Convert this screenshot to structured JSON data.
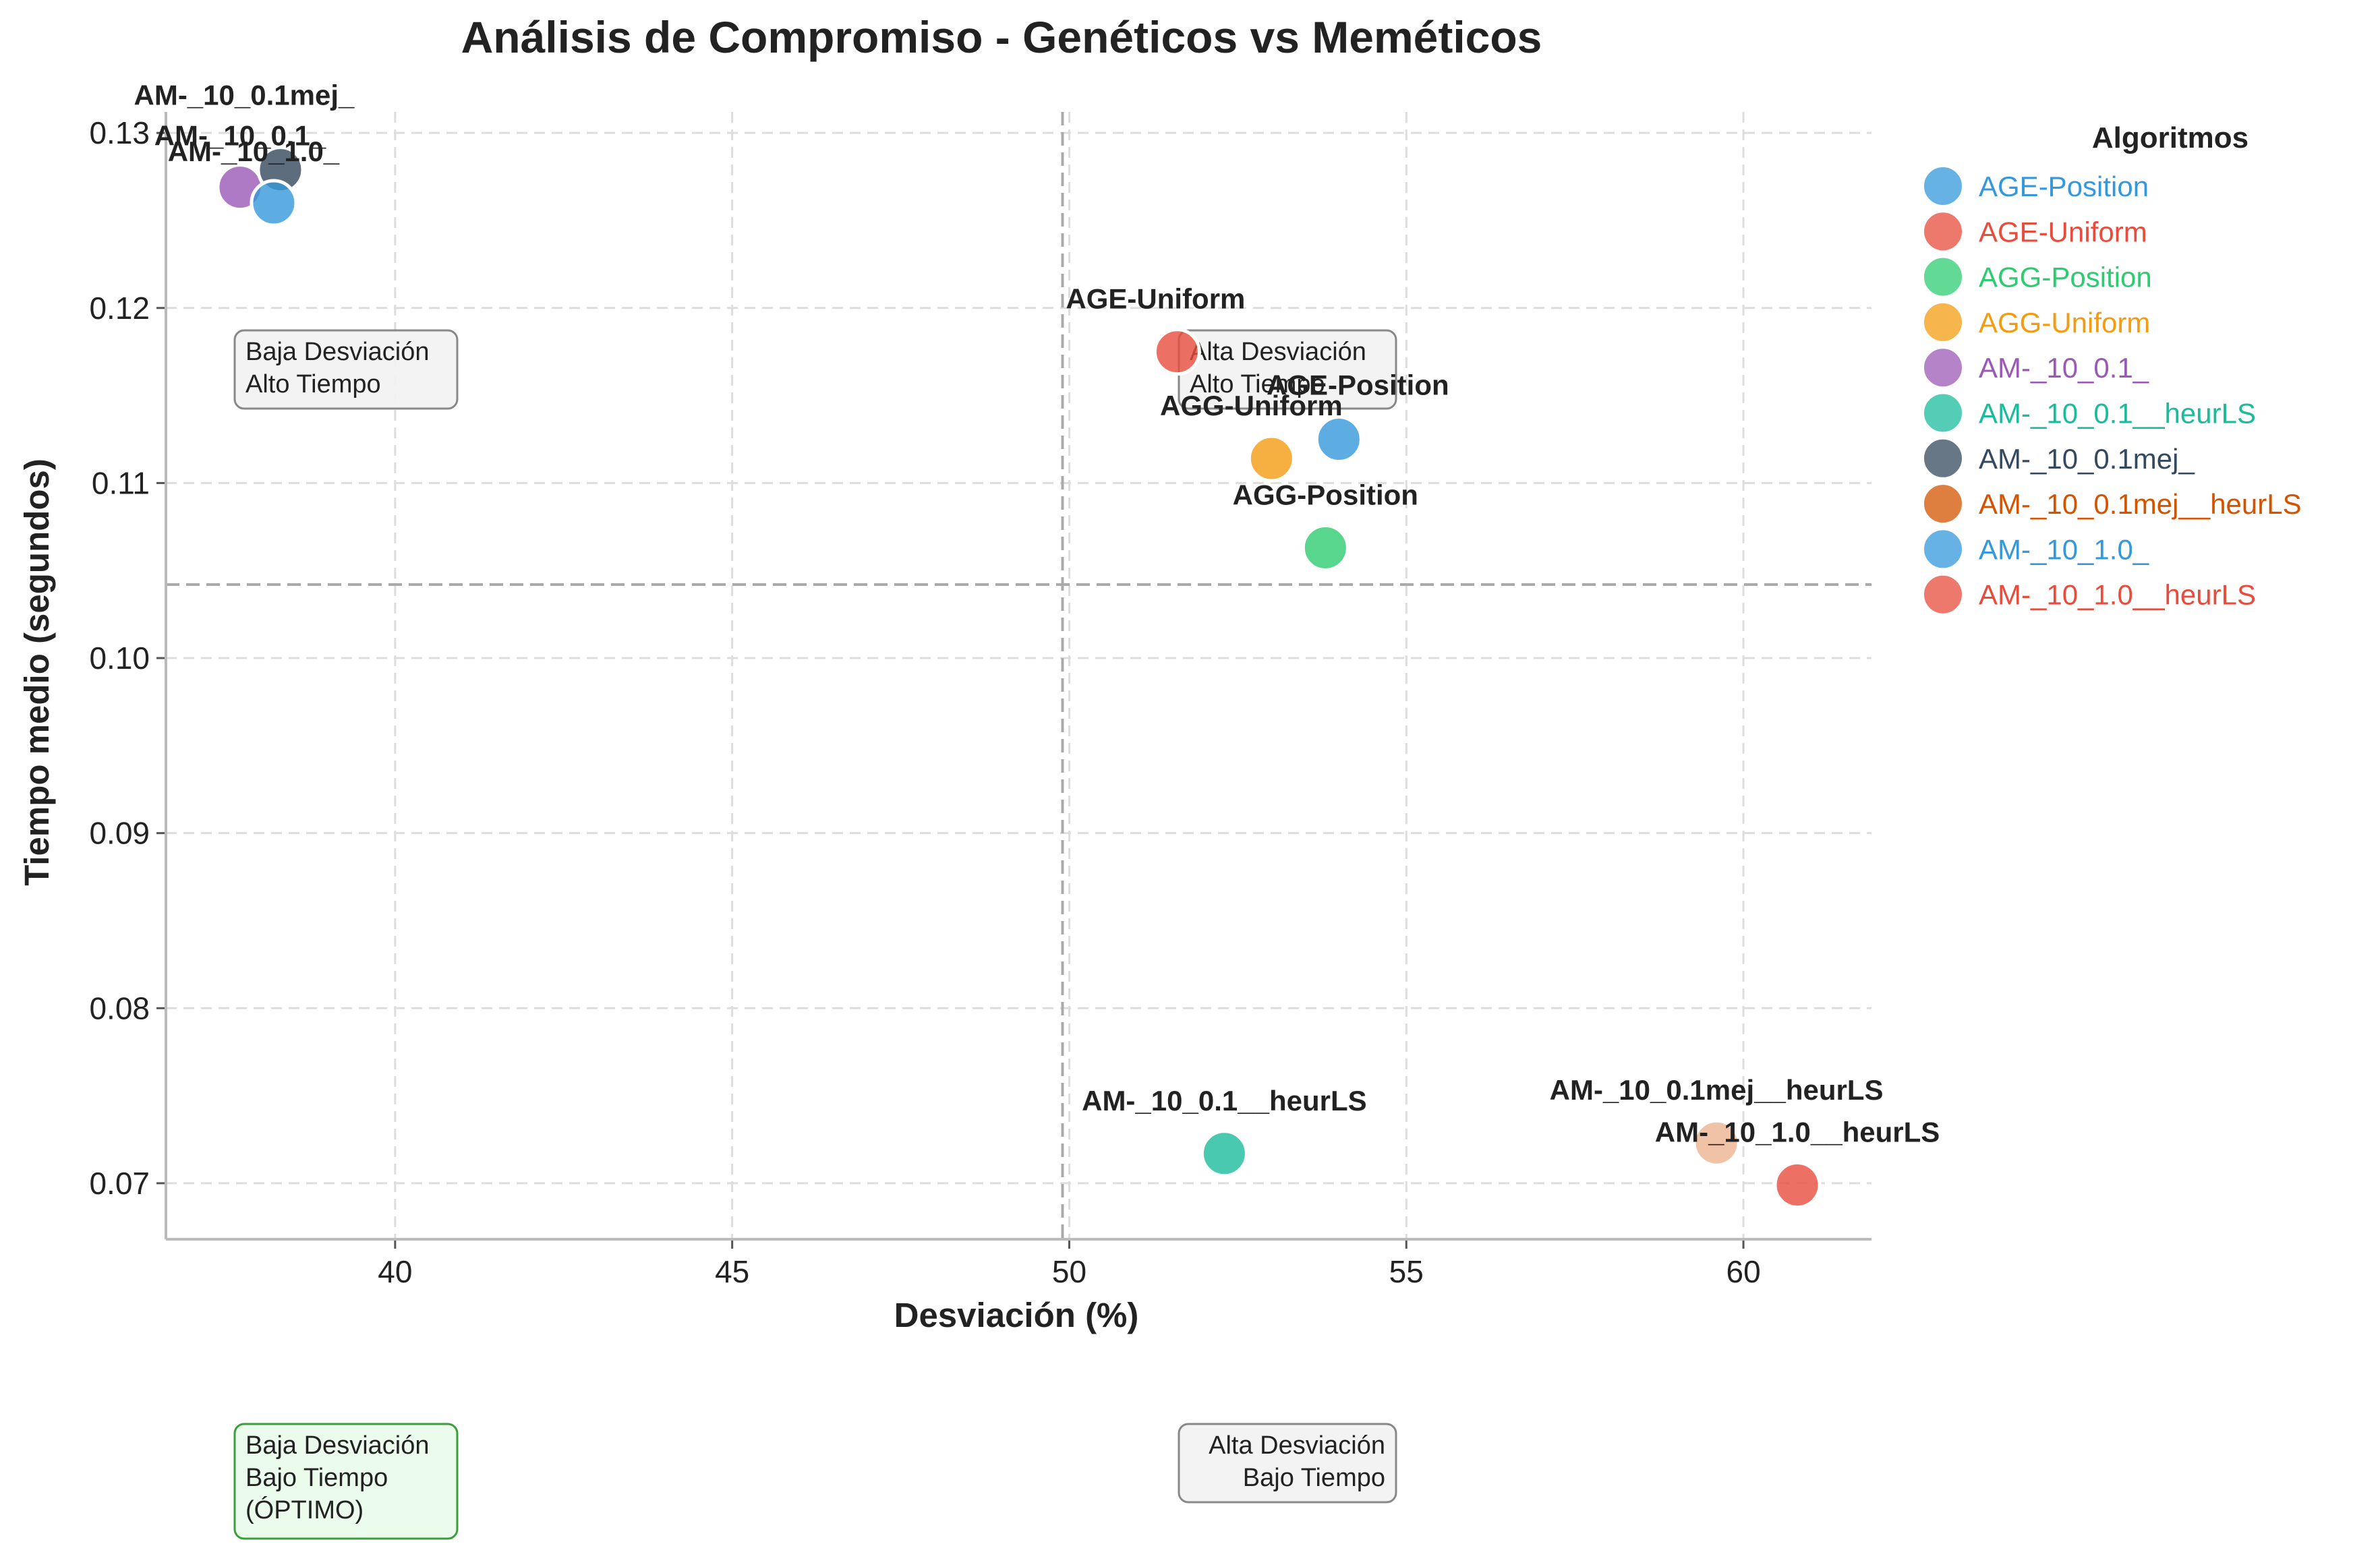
{
  "chart_data": {
    "type": "scatter",
    "title": "Análisis de Compromiso - Genéticos vs Meméticos",
    "xlabel": "Desviación (%)",
    "ylabel": "Tiempo medio (segundos)",
    "xlim": [
      36.6,
      61.9
    ],
    "ylim": [
      0.0668,
      0.1312
    ],
    "xticks": [
      40,
      45,
      50,
      55,
      60
    ],
    "yticks": [
      0.07,
      0.08,
      0.09,
      0.1,
      0.11,
      0.12,
      0.13
    ],
    "xtick_labels": [
      "40",
      "45",
      "50",
      "55",
      "60"
    ],
    "ytick_labels": [
      "0.07",
      "0.08",
      "0.09",
      "0.10",
      "0.11",
      "0.12",
      "0.13"
    ],
    "grid": true,
    "median_lines": {
      "x": 49.9,
      "y": 0.1042
    },
    "legend": {
      "title": "Algoritmos",
      "placement": "outside-right"
    },
    "points": [
      {
        "name": "AGE-Position",
        "x": 54.0,
        "y": 0.1125,
        "color": "#3498db"
      },
      {
        "name": "AGE-Uniform",
        "x": 51.6,
        "y": 0.1175,
        "color": "#e74c3c"
      },
      {
        "name": "AGG-Position",
        "x": 53.8,
        "y": 0.1063,
        "color": "#2ecc71"
      },
      {
        "name": "AGG-Uniform",
        "x": 53.0,
        "y": 0.1114,
        "color": "#f39c12"
      },
      {
        "name": "AM-_10_0.1_",
        "x": 37.7,
        "y": 0.1269,
        "color": "#9b59b6"
      },
      {
        "name": "AM-_10_0.1__heurLS",
        "x": 52.3,
        "y": 0.0717,
        "color": "#1abc9c"
      },
      {
        "name": "AM-_10_0.1mej_",
        "x": 38.3,
        "y": 0.1279,
        "color": "#34495e"
      },
      {
        "name": "AM-_10_0.1mej__heurLS",
        "x": 59.6,
        "y": 0.0723,
        "color": "#d35400"
      },
      {
        "name": "AM-_10_1.0_",
        "x": 38.2,
        "y": 0.126,
        "color": "#3498db"
      },
      {
        "name": "AM-_10_1.0__heurLS",
        "x": 60.8,
        "y": 0.0699,
        "color": "#e74c3c"
      }
    ],
    "annotations": [
      {
        "lines": [
          "Baja Desviación",
          "Alto Tiempo"
        ],
        "style": "grey"
      },
      {
        "lines": [
          "Alta Desviación",
          "Alto Tiempo"
        ],
        "style": "grey"
      },
      {
        "lines": [
          "Baja Desviación",
          "Bajo Tiempo",
          "(ÓPTIMO)"
        ],
        "style": "green"
      },
      {
        "lines": [
          "Alta Desviación",
          "Bajo Tiempo"
        ],
        "style": "grey"
      }
    ]
  }
}
